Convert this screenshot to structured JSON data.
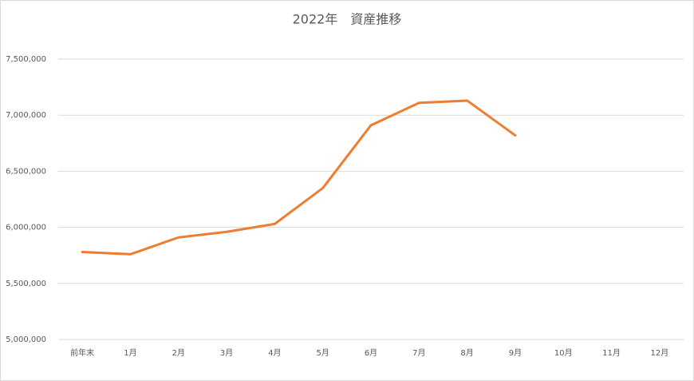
{
  "chart_data": {
    "type": "line",
    "title": "2022年　資産推移",
    "categories": [
      "前年末",
      "1月",
      "2月",
      "3月",
      "4月",
      "5月",
      "6月",
      "7月",
      "8月",
      "9月",
      "10月",
      "11月",
      "12月"
    ],
    "values": [
      5780000,
      5760000,
      5910000,
      5960000,
      6030000,
      6350000,
      6910000,
      7110000,
      7130000,
      6820000,
      null,
      null,
      null
    ],
    "color": "#ed7d31",
    "ylim": [
      5000000,
      7500000
    ],
    "yticks": [
      {
        "value": 5000000,
        "label": "5,000,000"
      },
      {
        "value": 5500000,
        "label": "5,500,000"
      },
      {
        "value": 6000000,
        "label": "6,000,000"
      },
      {
        "value": 6500000,
        "label": "6,500,000"
      },
      {
        "value": 7000000,
        "label": "7,000,000"
      },
      {
        "value": 7500000,
        "label": "7,500,000"
      }
    ],
    "grid": true
  }
}
